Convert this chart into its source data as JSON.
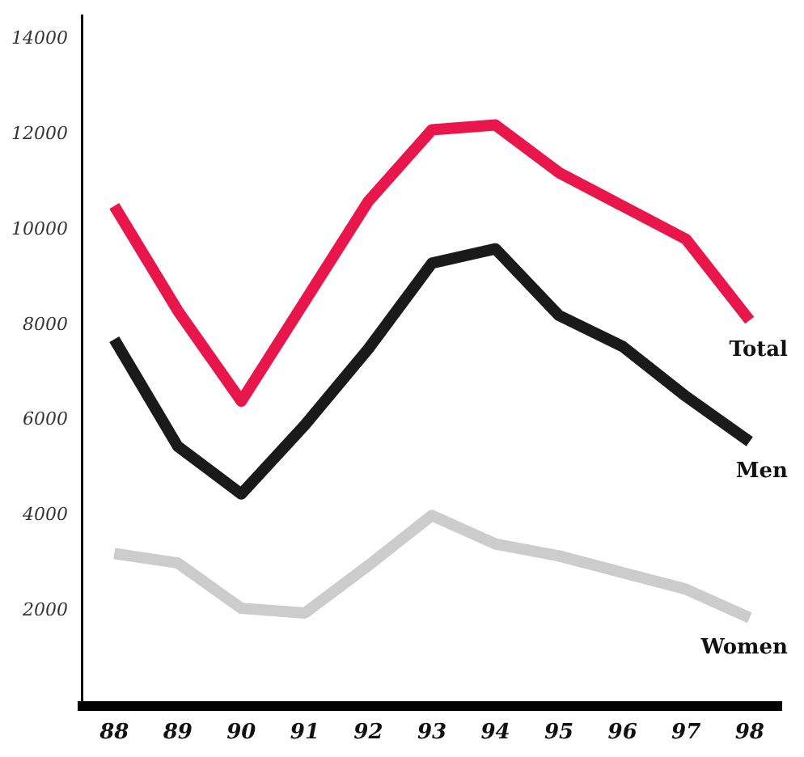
{
  "chart_data": {
    "type": "line",
    "categories": [
      "88",
      "89",
      "90",
      "91",
      "92",
      "93",
      "94",
      "95",
      "96",
      "97",
      "98"
    ],
    "series": [
      {
        "name": "Total",
        "color": "#e8164a",
        "values": [
          10500,
          8300,
          6400,
          8500,
          10600,
          12100,
          12200,
          11200,
          10500,
          9800,
          8100
        ]
      },
      {
        "name": "Men",
        "color": "#1a1a1a",
        "values": [
          7700,
          5450,
          4450,
          5900,
          7500,
          9300,
          9600,
          8200,
          7550,
          6500,
          5550
        ]
      },
      {
        "name": "Women",
        "color": "#cccccc",
        "values": [
          3200,
          3000,
          2050,
          1950,
          2950,
          4000,
          3400,
          3150,
          2800,
          2450,
          1850
        ]
      }
    ],
    "ylim": [
      0,
      14500
    ],
    "yticks": [
      2000,
      4000,
      6000,
      8000,
      10000,
      12000,
      14000
    ],
    "grid": false,
    "legend": false,
    "marker": "none",
    "line_style": "solid"
  }
}
